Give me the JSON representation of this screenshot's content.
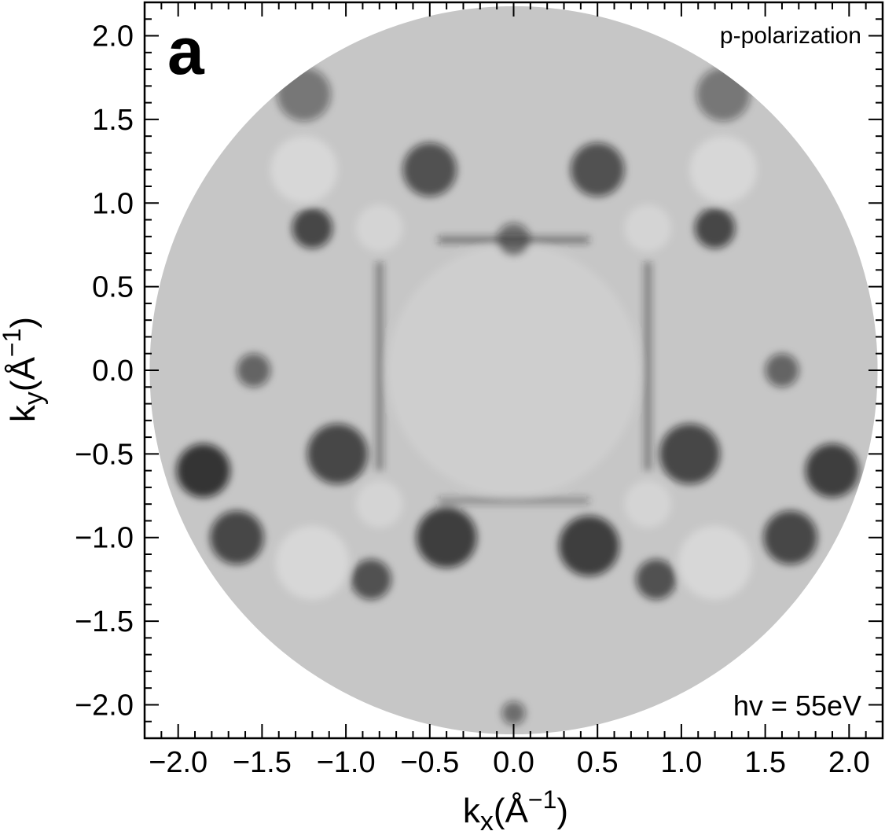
{
  "chart_data": {
    "type": "heatmap",
    "panel_label": "a",
    "top_right_label": "p-polarization",
    "bottom_right_label": "hv = 55eV",
    "xlabel_base": "k",
    "xlabel_sub": "x",
    "xlabel_unit": "(Å",
    "ylabel_base": "k",
    "ylabel_sub": "y",
    "ylabel_unit": "(Å",
    "unit_exp": "−1",
    "unit_close": ")",
    "xlim": [
      -2.2,
      2.2
    ],
    "ylim": [
      -2.2,
      2.2
    ],
    "x_ticks": [
      -2.0,
      -1.5,
      -1.0,
      -0.5,
      0.0,
      0.5,
      1.0,
      1.5,
      2.0
    ],
    "x_tick_labels": [
      "−2.0",
      "−1.5",
      "−1.0",
      "−0.5",
      "0.0",
      "0.5",
      "1.0",
      "1.5",
      "2.0"
    ],
    "y_ticks": [
      2.0,
      1.5,
      1.0,
      0.5,
      0.0,
      -0.5,
      -1.0,
      -1.5,
      -2.0
    ],
    "y_tick_labels": [
      "2.0",
      "1.5",
      "1.0",
      "0.5",
      "0.0",
      "−0.5",
      "−1.0",
      "−1.5",
      "−2.0"
    ],
    "minor_tick_step": 0.1,
    "data_region": {
      "shape": "circle",
      "center": [
        0.0,
        0.0
      ],
      "radius": 2.17
    },
    "colormap": "gray_r",
    "grid": false,
    "features": [
      {
        "kind": "bright",
        "x": 0.0,
        "y": 0.0,
        "r": 0.75,
        "strength": 0.15
      },
      {
        "kind": "bright",
        "x": -0.8,
        "y": 0.85,
        "r": 0.14,
        "strength": 0.25
      },
      {
        "kind": "bright",
        "x": 0.8,
        "y": 0.85,
        "r": 0.14,
        "strength": 0.25
      },
      {
        "kind": "bright",
        "x": -0.8,
        "y": -0.8,
        "r": 0.14,
        "strength": 0.25
      },
      {
        "kind": "bright",
        "x": 0.8,
        "y": -0.8,
        "r": 0.14,
        "strength": 0.25
      },
      {
        "kind": "bright",
        "x": -1.25,
        "y": 1.2,
        "r": 0.2,
        "strength": 0.3
      },
      {
        "kind": "bright",
        "x": 1.25,
        "y": 1.2,
        "r": 0.2,
        "strength": 0.3
      },
      {
        "kind": "bright",
        "x": -1.2,
        "y": -1.15,
        "r": 0.22,
        "strength": 0.3
      },
      {
        "kind": "bright",
        "x": 1.2,
        "y": -1.15,
        "r": 0.22,
        "strength": 0.3
      },
      {
        "kind": "dark",
        "x": -0.5,
        "y": 1.2,
        "r": 0.16,
        "strength": 0.65
      },
      {
        "kind": "dark",
        "x": 0.5,
        "y": 1.2,
        "r": 0.16,
        "strength": 0.65
      },
      {
        "kind": "dark",
        "x": -0.4,
        "y": -1.0,
        "r": 0.18,
        "strength": 0.75
      },
      {
        "kind": "dark",
        "x": 0.45,
        "y": -1.05,
        "r": 0.18,
        "strength": 0.75
      },
      {
        "kind": "dark",
        "x": -1.2,
        "y": 0.85,
        "r": 0.12,
        "strength": 0.7
      },
      {
        "kind": "dark",
        "x": 1.2,
        "y": 0.85,
        "r": 0.12,
        "strength": 0.7
      },
      {
        "kind": "dark",
        "x": -1.05,
        "y": -0.5,
        "r": 0.18,
        "strength": 0.7
      },
      {
        "kind": "dark",
        "x": 1.05,
        "y": -0.5,
        "r": 0.18,
        "strength": 0.7
      },
      {
        "kind": "dark",
        "x": -1.85,
        "y": -0.6,
        "r": 0.16,
        "strength": 0.8
      },
      {
        "kind": "dark",
        "x": 1.9,
        "y": -0.6,
        "r": 0.16,
        "strength": 0.75
      },
      {
        "kind": "dark",
        "x": -1.65,
        "y": -1.0,
        "r": 0.16,
        "strength": 0.7
      },
      {
        "kind": "dark",
        "x": 1.65,
        "y": -1.0,
        "r": 0.16,
        "strength": 0.7
      },
      {
        "kind": "dark",
        "x": -0.85,
        "y": -1.25,
        "r": 0.12,
        "strength": 0.65
      },
      {
        "kind": "dark",
        "x": 0.85,
        "y": -1.25,
        "r": 0.12,
        "strength": 0.65
      },
      {
        "kind": "dark",
        "x": -1.55,
        "y": 0.0,
        "r": 0.1,
        "strength": 0.55
      },
      {
        "kind": "dark",
        "x": 1.6,
        "y": 0.0,
        "r": 0.1,
        "strength": 0.55
      },
      {
        "kind": "dark",
        "x": 0.0,
        "y": 0.78,
        "r": 0.1,
        "strength": 0.5
      },
      {
        "kind": "dark",
        "x": -1.25,
        "y": 1.65,
        "r": 0.16,
        "strength": 0.45
      },
      {
        "kind": "dark",
        "x": 1.25,
        "y": 1.65,
        "r": 0.16,
        "strength": 0.45
      },
      {
        "kind": "dark",
        "x": 0.0,
        "y": -2.05,
        "r": 0.07,
        "strength": 0.5
      }
    ],
    "edge_lines": [
      {
        "x1": -0.8,
        "y1": 0.65,
        "x2": -0.8,
        "y2": -0.6,
        "strength": 0.5
      },
      {
        "x1": 0.8,
        "y1": 0.65,
        "x2": 0.8,
        "y2": -0.6,
        "strength": 0.5
      },
      {
        "x1": -0.45,
        "y1": 0.78,
        "x2": 0.45,
        "y2": 0.78,
        "strength": 0.55
      },
      {
        "x1": -0.45,
        "y1": -0.78,
        "x2": 0.45,
        "y2": -0.78,
        "strength": 0.4
      }
    ]
  }
}
